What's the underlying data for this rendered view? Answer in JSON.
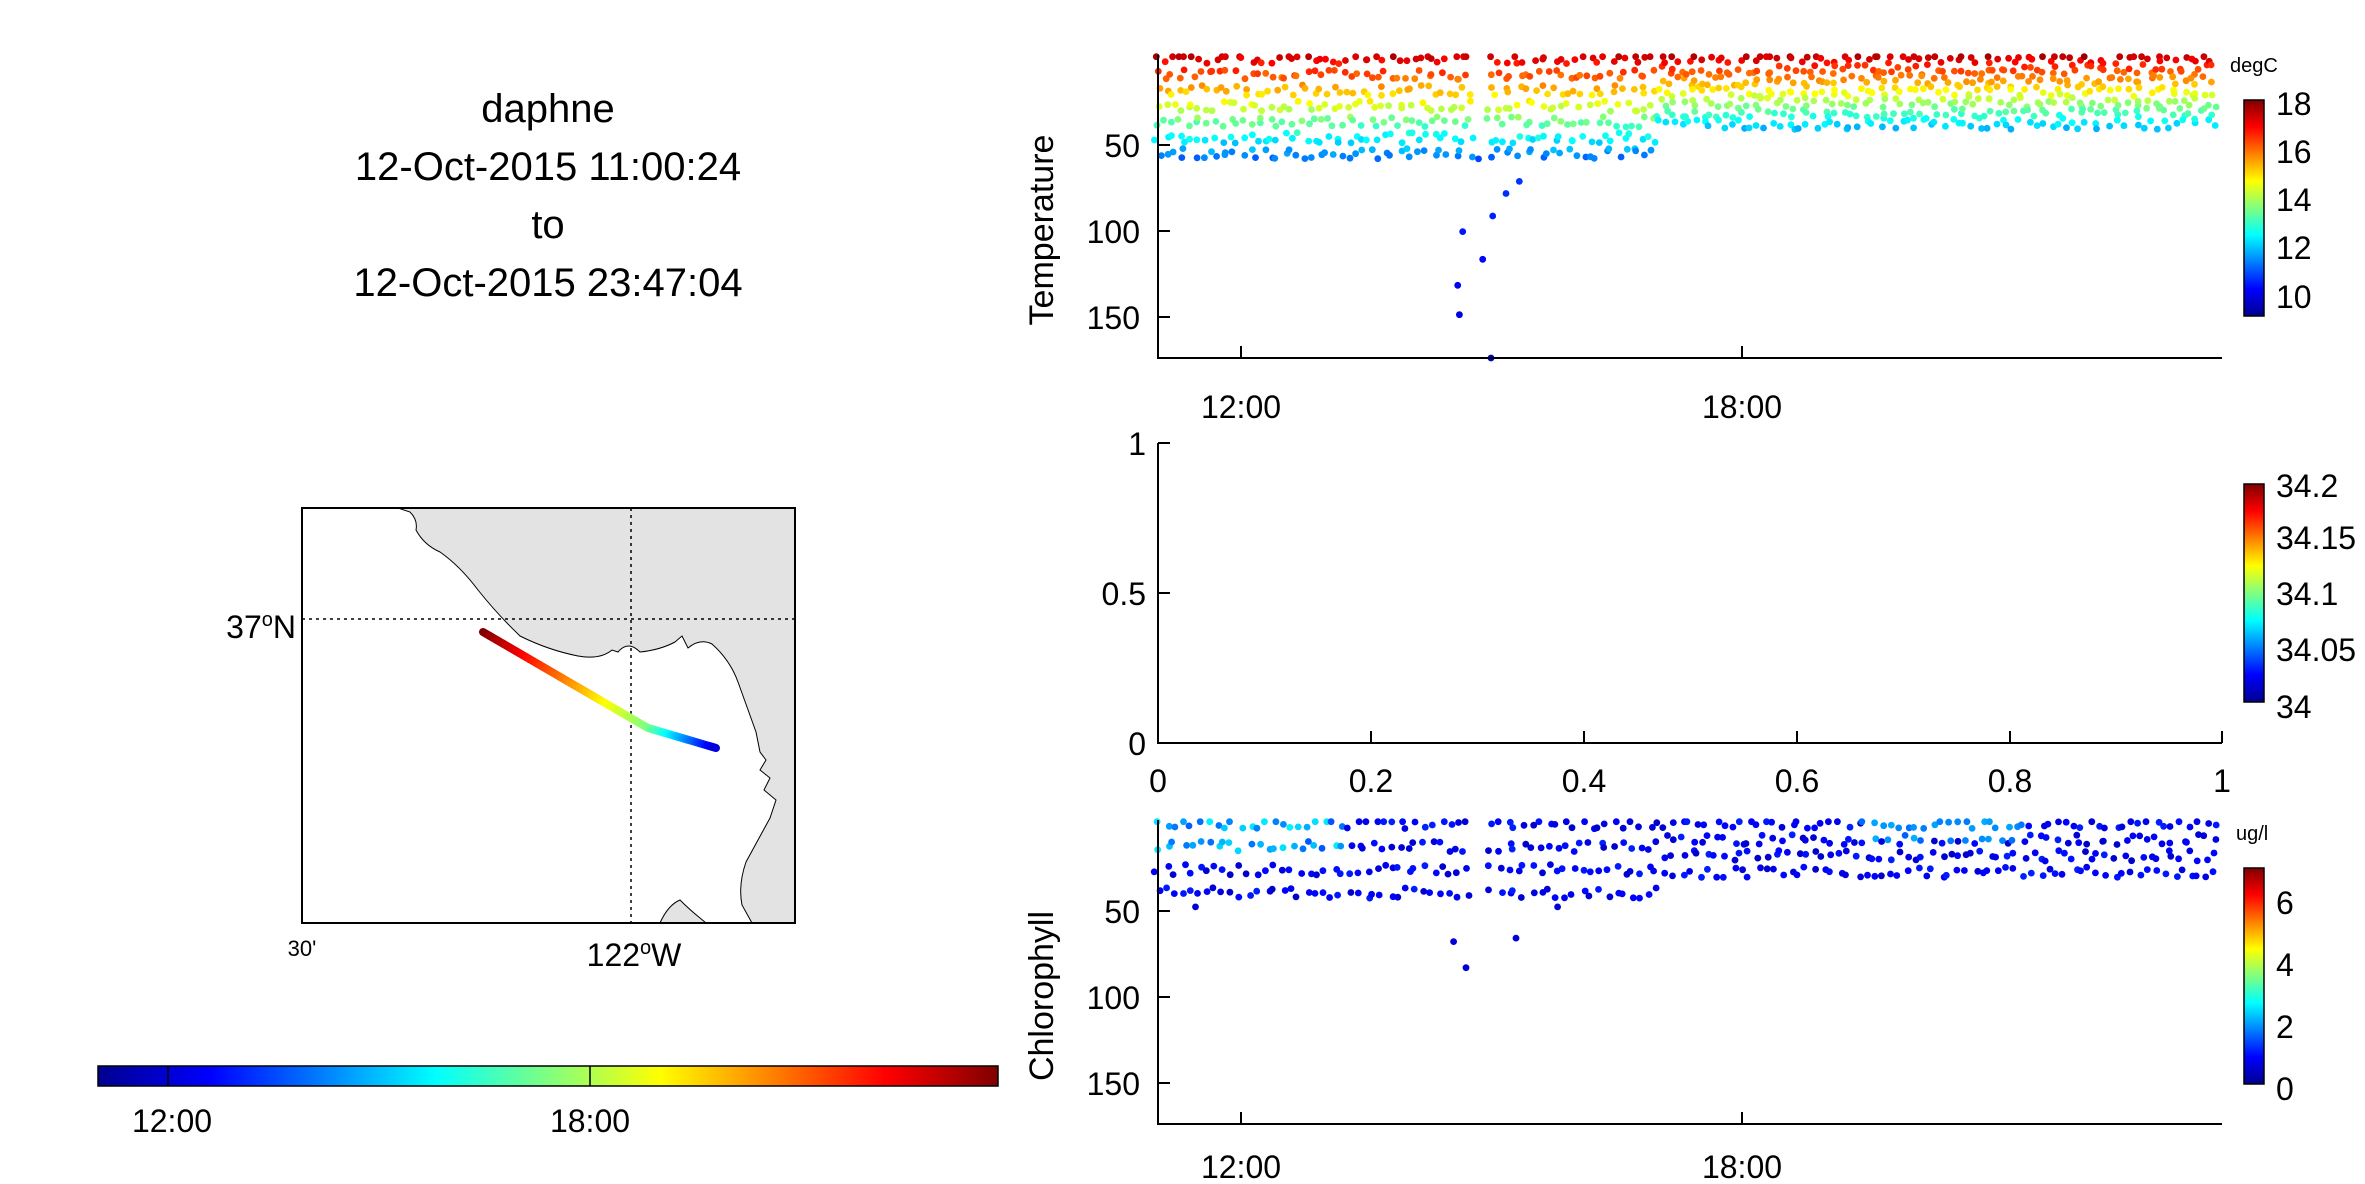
{
  "header": {
    "vehicle": "daphne",
    "start": "12-Oct-2015 11:00:24",
    "to": "to",
    "end": "12-Oct-2015 23:47:04"
  },
  "map": {
    "lat_label": "37",
    "lat_sup": "o",
    "lat_hemi": "N",
    "lon_label": "122",
    "lon_sup": "o",
    "lon_hemi": "W",
    "lon_minor": "30'",
    "land_color": "#e3e3e3"
  },
  "time_colorbar": {
    "ticks": [
      "12:00",
      "18:00"
    ]
  },
  "chart_data": [
    {
      "type": "scatter",
      "panel": "temperature",
      "ylabel": "Temperature",
      "units": "degC",
      "x_ticks": [
        "12:00",
        "18:00"
      ],
      "y_ticks": [
        "50",
        "100",
        "150"
      ],
      "x_hours": [
        11.0,
        23.78
      ],
      "depth_range": [
        0,
        175
      ],
      "colorbar": {
        "ticks": [
          "10",
          "12",
          "14",
          "16",
          "18"
        ],
        "range": [
          9,
          18.5
        ]
      },
      "dive_depths": [
        [
          14.62,
          150
        ],
        [
          14.6,
          133
        ],
        [
          14.66,
          102
        ],
        [
          14.9,
          118
        ],
        [
          15.02,
          93
        ],
        [
          15.18,
          80
        ],
        [
          15.34,
          73
        ],
        [
          15.0,
          175
        ],
        [
          14.85,
          60
        ]
      ]
    },
    {
      "type": "scatter",
      "panel": "salinity",
      "ylabel": "",
      "units": "",
      "x_ticks": [
        "0",
        "0.2",
        "0.4",
        "0.6",
        "0.8",
        "1"
      ],
      "y_ticks": [
        "0",
        "0.5",
        "1"
      ],
      "xlim": [
        0,
        1
      ],
      "ylim": [
        0,
        1
      ],
      "colorbar": {
        "ticks": [
          "34",
          "34.05",
          "34.1",
          "34.15",
          "34.2"
        ],
        "range": [
          34,
          34.2
        ]
      },
      "points": []
    },
    {
      "type": "scatter",
      "panel": "chlorophyll",
      "ylabel": "Chlorophyll",
      "units": "ug/l",
      "x_ticks": [
        "12:00",
        "18:00"
      ],
      "y_ticks": [
        "50",
        "100",
        "150"
      ],
      "x_hours": [
        11.0,
        23.78
      ],
      "depth_range": [
        0,
        175
      ],
      "colorbar": {
        "ticks": [
          "0",
          "2",
          "4",
          "6"
        ],
        "range": [
          0,
          7
        ]
      }
    }
  ]
}
